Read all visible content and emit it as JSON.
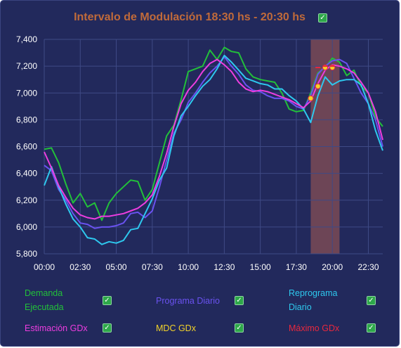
{
  "title": "Intervalo de Modulación 18:30 hs - 20:30 hs",
  "title_checked": true,
  "colors": {
    "background": "#22295c",
    "grid": "#3f4a86",
    "title": "#c06a3a",
    "highlight": "#7a4a55"
  },
  "legend": [
    {
      "id": "demanda",
      "label_lines": [
        "Demanda",
        "Ejecutada"
      ],
      "color": "#22c03a",
      "checked": true
    },
    {
      "id": "programa",
      "label_lines": [
        "Programa Diario"
      ],
      "color": "#6a52f0",
      "checked": true
    },
    {
      "id": "reprograma",
      "label_lines": [
        "Reprograma",
        "Diario"
      ],
      "color": "#2ec8ee",
      "checked": true
    },
    {
      "id": "estimacion",
      "label_lines": [
        "Estimación GDx"
      ],
      "color": "#ee3de0",
      "checked": true
    },
    {
      "id": "mdc",
      "label_lines": [
        "MDC GDx"
      ],
      "color": "#f2d22a",
      "checked": true
    },
    {
      "id": "maximo",
      "label_lines": [
        "Máximo GDx"
      ],
      "color": "#e8283e",
      "checked": true
    }
  ],
  "chart_data": {
    "type": "line",
    "x_unit": "hours",
    "x_ticks": [
      "00:00",
      "02:30",
      "05:00",
      "07:30",
      "10:00",
      "12:30",
      "15:00",
      "17:30",
      "20:00",
      "22:30"
    ],
    "x_tick_values": [
      0,
      2.5,
      5,
      7.5,
      10,
      12.5,
      15,
      17.5,
      20,
      22.5
    ],
    "xlim": [
      0,
      23.5
    ],
    "ylim": [
      5750,
      7400
    ],
    "y_ticks": [
      5800,
      6000,
      6200,
      6400,
      6600,
      6800,
      7000,
      7200,
      7400
    ],
    "y_tick_labels": [
      "5,800",
      "6,000",
      "6,200",
      "6,400",
      "6,600",
      "6,800",
      "7,000",
      "7,200",
      "7,400"
    ],
    "grid": true,
    "highlight_band": [
      18.5,
      20.5
    ],
    "series": [
      {
        "name": "Demanda Ejecutada",
        "color": "#22c03a",
        "x": [
          0,
          0.5,
          1,
          1.5,
          2,
          2.5,
          3,
          3.5,
          4,
          4.5,
          5,
          5.5,
          6,
          6.5,
          7,
          7.5,
          8,
          8.5,
          9,
          9.5,
          10,
          10.5,
          11,
          11.5,
          12,
          12.5,
          13,
          13.5,
          14,
          14.5,
          15,
          15.5,
          16,
          16.5,
          17,
          17.5,
          18,
          18.5,
          19,
          19.5,
          20,
          20.5,
          21,
          21.5,
          22,
          22.5,
          23,
          23.5
        ],
        "y": [
          6580,
          6590,
          6480,
          6320,
          6180,
          6250,
          6150,
          6180,
          6050,
          6180,
          6250,
          6300,
          6350,
          6340,
          6200,
          6280,
          6480,
          6680,
          6760,
          6950,
          7160,
          7180,
          7200,
          7320,
          7250,
          7340,
          7310,
          7300,
          7180,
          7120,
          7100,
          7090,
          7080,
          7000,
          6880,
          6860,
          6870,
          7000,
          7150,
          7190,
          7260,
          7230,
          7130,
          7170,
          7050,
          7000,
          6820,
          6750
        ]
      },
      {
        "name": "Programa Diario",
        "color": "#6a52f0",
        "x": [
          0,
          0.5,
          1,
          1.5,
          2,
          2.5,
          3,
          3.5,
          4,
          4.5,
          5,
          5.5,
          6,
          6.5,
          7,
          7.5,
          8,
          8.5,
          9,
          9.5,
          10,
          10.5,
          11,
          11.5,
          12,
          12.5,
          13,
          13.5,
          14,
          14.5,
          15,
          15.5,
          16,
          16.5,
          17,
          17.5,
          18,
          18.5,
          19,
          19.5,
          20,
          20.5,
          21,
          21.5,
          22,
          22.5,
          23,
          23.5
        ],
        "y": [
          6460,
          6420,
          6280,
          6200,
          6100,
          6030,
          6020,
          5990,
          6000,
          6000,
          6010,
          6030,
          6100,
          6110,
          6070,
          6120,
          6300,
          6500,
          6700,
          6800,
          6930,
          7000,
          7080,
          7150,
          7200,
          7270,
          7200,
          7140,
          7060,
          7020,
          7010,
          6980,
          6960,
          6960,
          6940,
          6900,
          6880,
          6980,
          7140,
          7200,
          7240,
          7250,
          7220,
          7110,
          7000,
          6920,
          6800,
          6600
        ]
      },
      {
        "name": "Reprograma Diario",
        "color": "#2ec8ee",
        "x": [
          0,
          0.5,
          1,
          1.5,
          2,
          2.5,
          3,
          3.5,
          4,
          4.5,
          5,
          5.5,
          6,
          6.5,
          7,
          7.5,
          8,
          8.5,
          9,
          9.5,
          10,
          10.5,
          11,
          11.5,
          12,
          12.5,
          13,
          13.5,
          14,
          14.5,
          15,
          15.5,
          16,
          16.5,
          17,
          17.5,
          18,
          18.5,
          19,
          19.5,
          20,
          20.5,
          21,
          21.5,
          22,
          22.5,
          23,
          23.5
        ],
        "y": [
          6310,
          6450,
          6300,
          6170,
          6060,
          6000,
          5920,
          5910,
          5870,
          5890,
          5880,
          5900,
          5980,
          5990,
          6100,
          6210,
          6350,
          6440,
          6680,
          6830,
          6900,
          6980,
          7050,
          7100,
          7180,
          7280,
          7230,
          7170,
          7110,
          7090,
          7070,
          7060,
          7030,
          7030,
          6980,
          6940,
          6880,
          6780,
          6980,
          7120,
          7060,
          7090,
          7100,
          7100,
          7060,
          6920,
          6720,
          6570
        ]
      },
      {
        "name": "Estimación GDx",
        "color": "#ee3de0",
        "x": [
          0,
          0.5,
          1,
          1.5,
          2,
          2.5,
          3,
          3.5,
          4,
          4.5,
          5,
          5.5,
          6,
          6.5,
          7,
          7.5,
          8,
          8.5,
          9,
          9.5,
          10,
          10.5,
          11,
          11.5,
          12,
          12.5,
          13,
          13.5,
          14,
          14.5,
          15,
          15.5,
          16,
          16.5,
          17,
          17.5,
          18,
          18.5,
          19,
          19.5,
          20,
          20.5,
          21,
          21.5,
          22,
          22.5,
          23,
          23.5
        ],
        "y": [
          6560,
          6440,
          6310,
          6220,
          6140,
          6090,
          6070,
          6060,
          6080,
          6080,
          6090,
          6100,
          6120,
          6140,
          6180,
          6240,
          6380,
          6550,
          6750,
          6920,
          7020,
          7080,
          7160,
          7220,
          7250,
          7210,
          7160,
          7080,
          7030,
          7010,
          7020,
          7010,
          6990,
          6970,
          6950,
          6920,
          6890,
          6940,
          7070,
          7170,
          7210,
          7200,
          7180,
          7150,
          7080,
          7000,
          6860,
          6650
        ]
      }
    ],
    "markers": [
      {
        "name": "MDC GDx",
        "color": "#f2d22a",
        "x": [
          18.5,
          19,
          19.5,
          20
        ],
        "y": [
          6960,
          7050,
          7190,
          7190
        ]
      },
      {
        "name": "Máximo GDx",
        "color": "#e8283e",
        "x": [
          19,
          19.5,
          20
        ],
        "y": [
          7190,
          7200,
          7200
        ]
      }
    ]
  }
}
